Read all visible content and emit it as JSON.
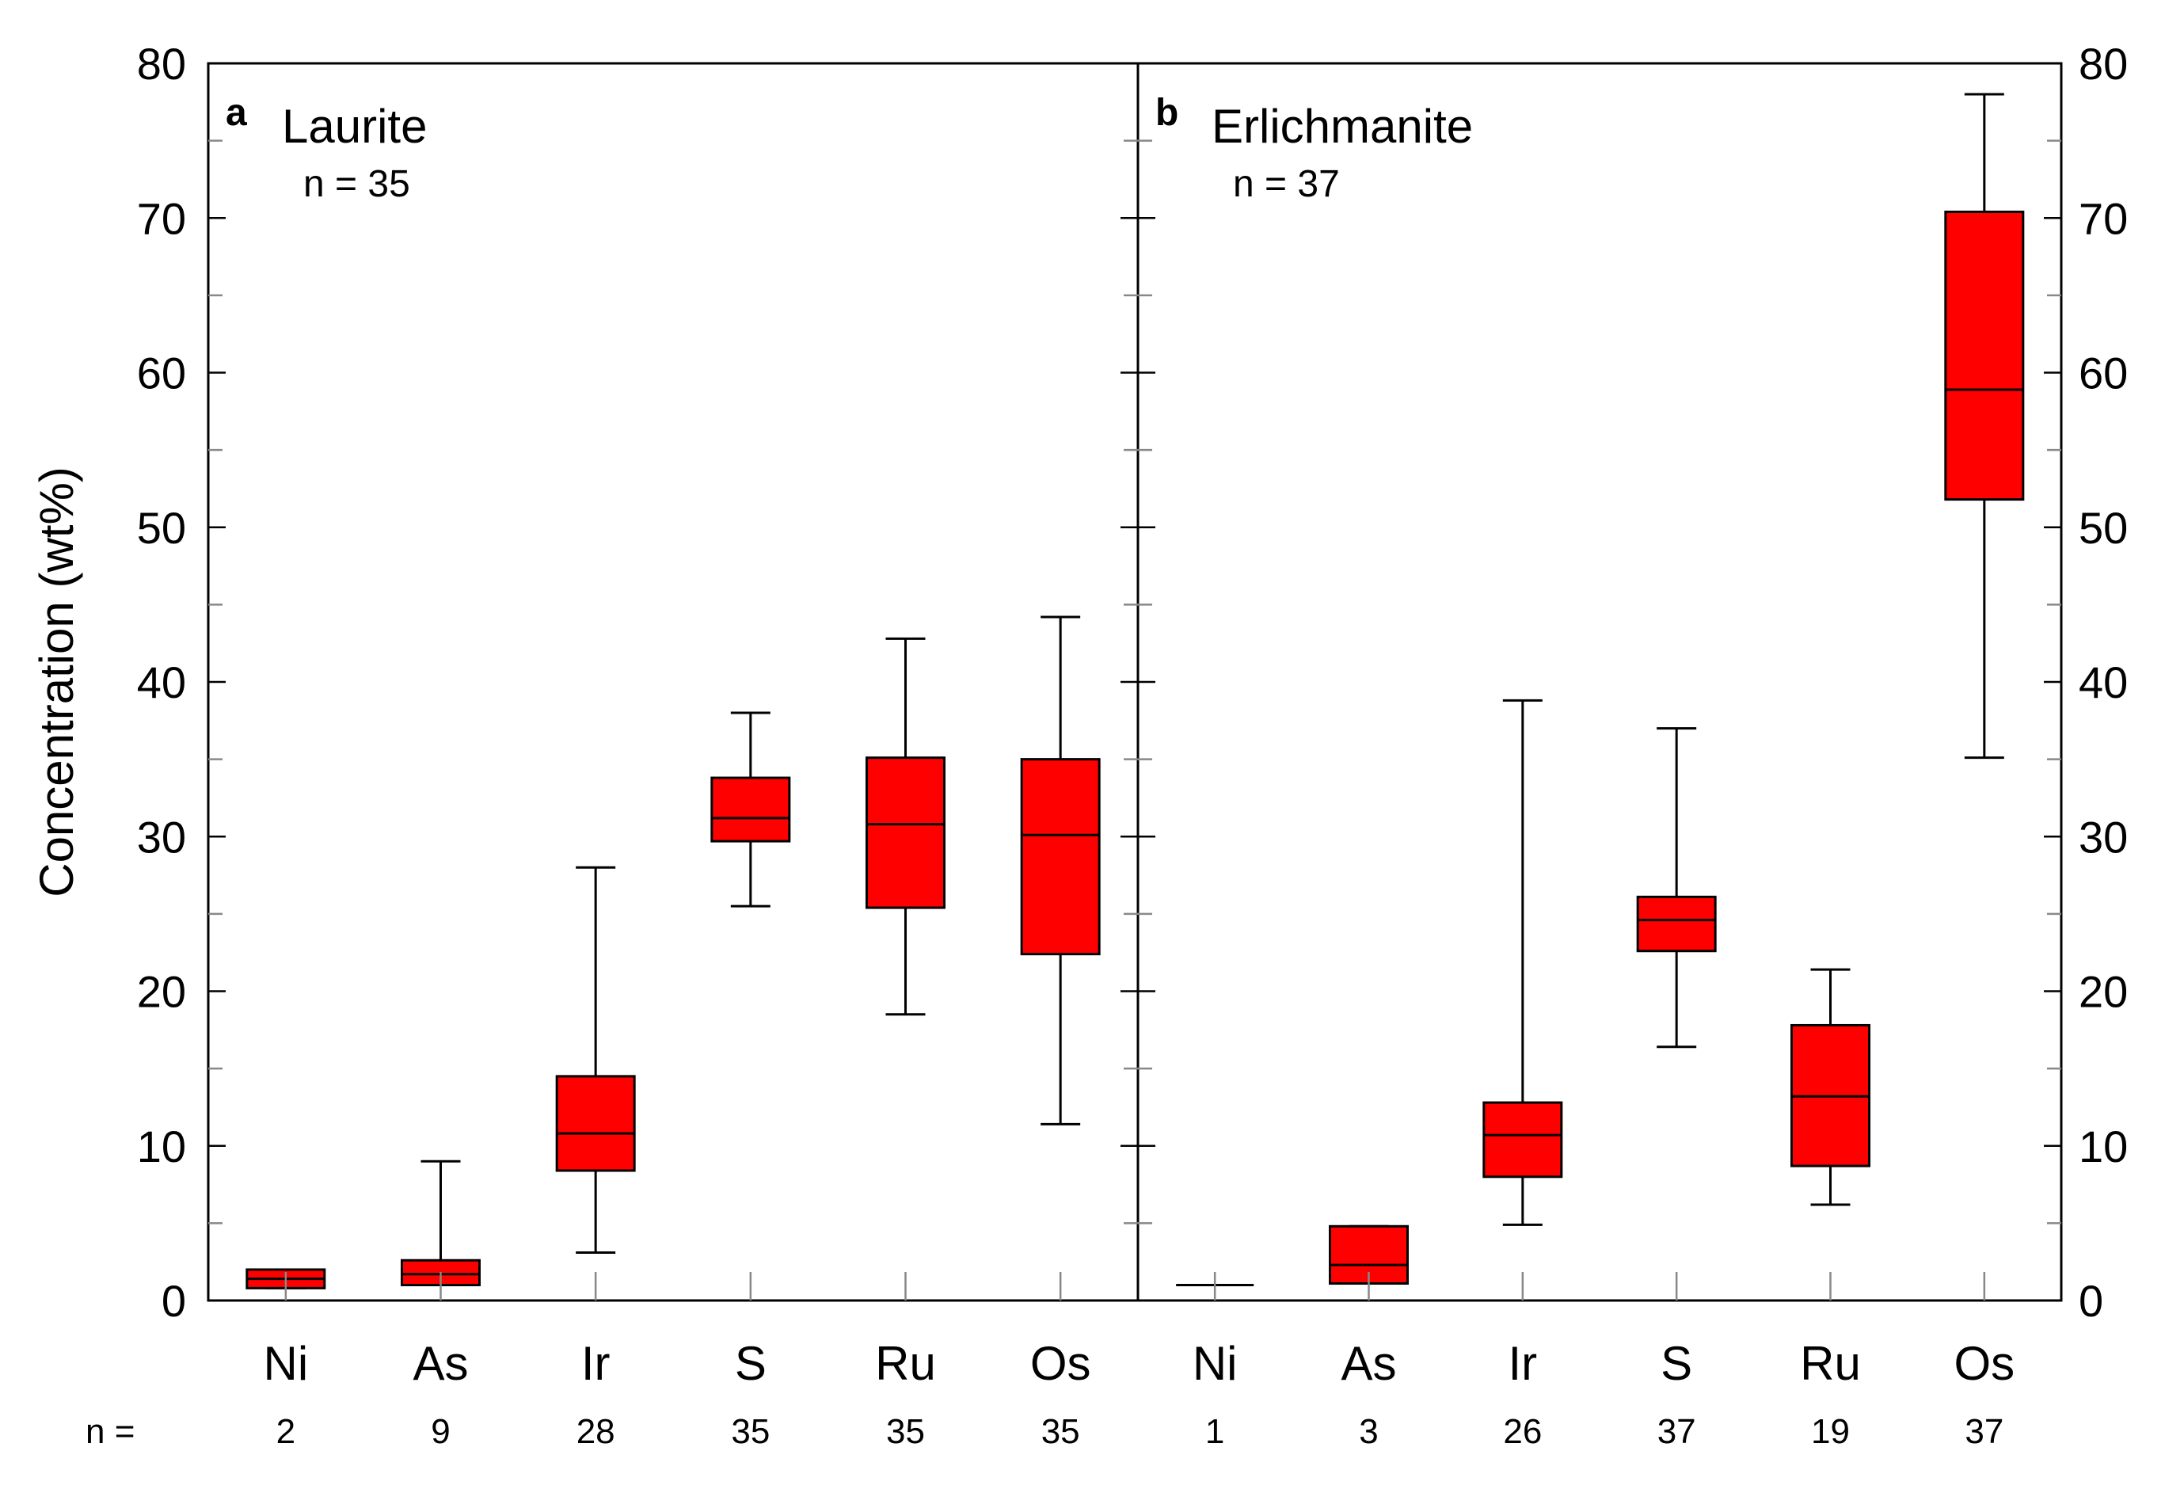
{
  "chart_data": {
    "type": "box",
    "ylabel": "Concentration (wt%)",
    "ylim": [
      0,
      80
    ],
    "yticks": [
      0,
      10,
      20,
      30,
      40,
      50,
      60,
      70,
      80
    ],
    "n_row_label": "n =",
    "box_color": "#ff0000",
    "panels": [
      {
        "letter": "a",
        "title": "Laurite",
        "n_text": "n = 35",
        "categories": [
          "Ni",
          "As",
          "Ir",
          "S",
          "Ru",
          "Os"
        ],
        "n": [
          "2",
          "9",
          "28",
          "35",
          "35",
          "35"
        ],
        "boxes": [
          {
            "min": 0.8,
            "q1": 0.8,
            "median": 1.4,
            "q3": 2.0,
            "max": 2.0
          },
          {
            "min": 1.0,
            "q1": 1.0,
            "median": 1.7,
            "q3": 2.6,
            "max": 9.0
          },
          {
            "min": 3.1,
            "q1": 8.4,
            "median": 10.8,
            "q3": 14.5,
            "max": 28.0
          },
          {
            "min": 25.5,
            "q1": 29.7,
            "median": 31.2,
            "q3": 33.8,
            "max": 38.0
          },
          {
            "min": 18.5,
            "q1": 25.4,
            "median": 30.8,
            "q3": 35.1,
            "max": 42.8
          },
          {
            "min": 11.4,
            "q1": 22.4,
            "median": 30.1,
            "q3": 35.0,
            "max": 44.2
          }
        ]
      },
      {
        "letter": "b",
        "title": "Erlichmanite",
        "n_text": "n = 37",
        "categories": [
          "Ni",
          "As",
          "Ir",
          "S",
          "Ru",
          "Os"
        ],
        "n": [
          "1",
          "3",
          "26",
          "37",
          "19",
          "37"
        ],
        "boxes": [
          {
            "min": 1.0,
            "q1": 1.0,
            "median": 1.0,
            "q3": 1.0,
            "max": 1.0
          },
          {
            "min": 1.1,
            "q1": 1.1,
            "median": 2.3,
            "q3": 4.8,
            "max": 4.8
          },
          {
            "min": 4.9,
            "q1": 8.0,
            "median": 10.7,
            "q3": 12.8,
            "max": 38.8
          },
          {
            "min": 16.4,
            "q1": 22.6,
            "median": 24.6,
            "q3": 26.1,
            "max": 37.0
          },
          {
            "min": 6.2,
            "q1": 8.7,
            "median": 13.2,
            "q3": 17.8,
            "max": 21.4
          },
          {
            "min": 35.1,
            "q1": 51.8,
            "median": 58.9,
            "q3": 70.4,
            "max": 78.0
          }
        ]
      }
    ]
  }
}
